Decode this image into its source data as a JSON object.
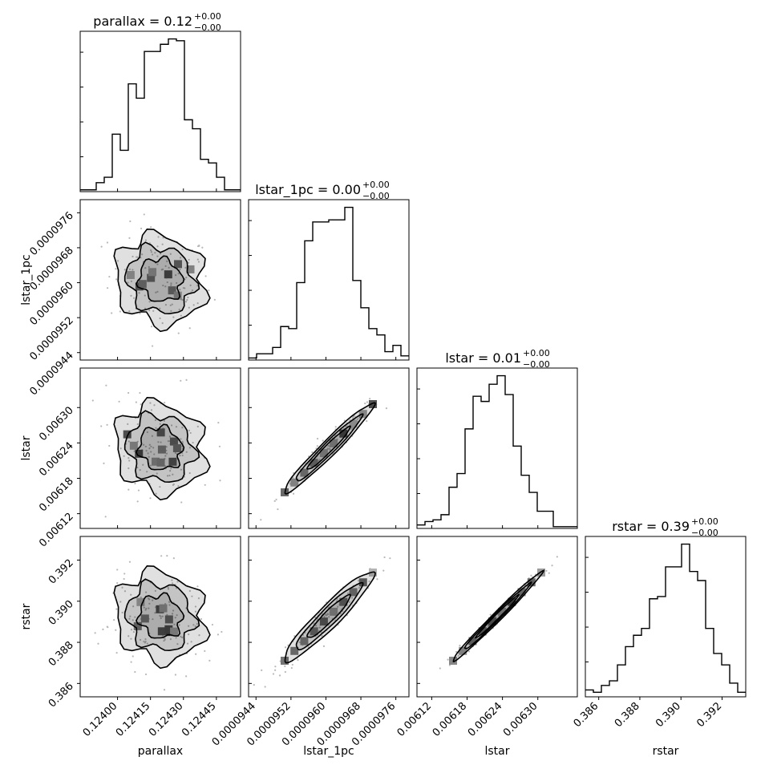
{
  "chart_data": {
    "type": "corner",
    "parameters": [
      "parallax",
      "lstar_1pc",
      "lstar",
      "rstar"
    ],
    "titles": [
      {
        "param": "parallax",
        "text": "parallax = 0.12",
        "sup": "+0.00",
        "sub": "−0.00"
      },
      {
        "param": "lstar_1pc",
        "text": "lstar_1pc = 0.00",
        "sup": "+0.00",
        "sub": "−0.00"
      },
      {
        "param": "lstar",
        "text": "lstar = 0.01",
        "sup": "+0.00",
        "sub": "−0.00"
      },
      {
        "param": "rstar",
        "text": "rstar = 0.39",
        "sup": "+0.00",
        "sub": "−0.00"
      }
    ],
    "axes": [
      {
        "param": "parallax",
        "range": [
          0.12383,
          0.12456
        ],
        "ticks": [
          0.124,
          0.12415,
          0.1243,
          0.12445
        ],
        "tick_labels": [
          "0.12400",
          "0.12415",
          "0.12430",
          "0.12445"
        ]
      },
      {
        "param": "lstar_1pc",
        "range": [
          9.423e-05,
          9.79e-05
        ],
        "ticks": [
          9.44e-05,
          9.52e-05,
          9.6e-05,
          9.68e-05,
          9.76e-05
        ],
        "tick_labels": [
          "0.0000944",
          "0.0000952",
          "0.0000960",
          "0.0000968",
          "0.0000976"
        ]
      },
      {
        "param": "lstar",
        "range": [
          0.006095,
          0.006367
        ],
        "ticks": [
          0.00612,
          0.00618,
          0.00624,
          0.0063
        ],
        "tick_labels": [
          "0.00612",
          "0.00618",
          "0.00624",
          "0.00630"
        ]
      },
      {
        "param": "rstar",
        "range": [
          0.38535,
          0.39315
        ],
        "ticks": [
          0.386,
          0.388,
          0.39,
          0.392
        ],
        "tick_labels": [
          "0.386",
          "0.388",
          "0.390",
          "0.392"
        ]
      }
    ],
    "histograms": [
      {
        "param": "parallax",
        "counts": [
          1,
          1,
          5,
          8,
          32,
          23,
          60,
          52,
          78,
          78,
          82,
          85,
          84,
          40,
          35,
          18,
          16,
          8,
          1,
          1
        ]
      },
      {
        "param": "lstar_1pc",
        "counts": [
          1,
          3,
          3,
          6,
          16,
          15,
          37,
          57,
          66,
          66,
          67,
          67,
          73,
          38,
          25,
          15,
          12,
          4,
          7,
          2
        ]
      },
      {
        "param": "lstar",
        "counts": [
          2,
          4,
          5,
          8,
          24,
          32,
          58,
          77,
          74,
          84,
          89,
          78,
          48,
          31,
          21,
          10,
          10,
          1,
          1,
          1
        ]
      },
      {
        "param": "rstar",
        "counts": [
          3,
          2,
          5,
          7,
          14,
          22,
          27,
          30,
          43,
          44,
          57,
          57,
          67,
          55,
          51,
          30,
          19,
          14,
          6,
          2
        ]
      }
    ],
    "grid": false,
    "legend": "none"
  }
}
